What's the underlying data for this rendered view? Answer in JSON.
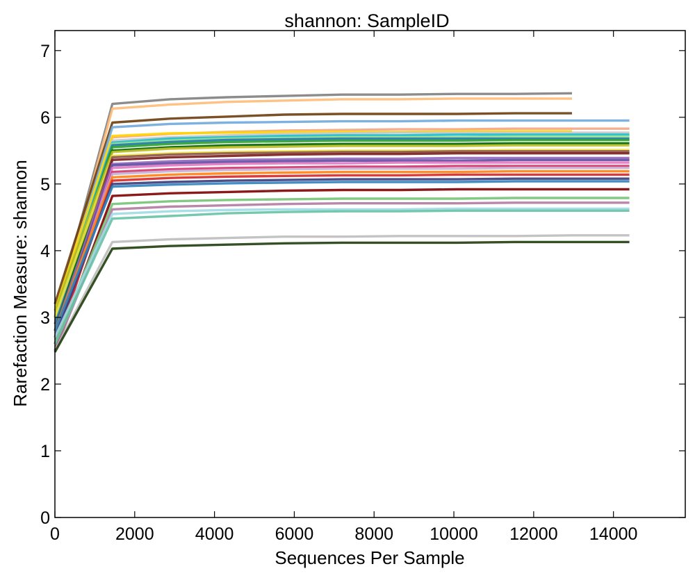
{
  "chart_data": {
    "type": "line",
    "title": "shannon: SampleID",
    "xlabel": "Sequences Per Sample",
    "ylabel": "Rarefaction Measure: shannon",
    "xlim": [
      0,
      15800
    ],
    "ylim": [
      0,
      7.3
    ],
    "x_ticks": [
      0,
      2000,
      4000,
      6000,
      8000,
      10000,
      12000,
      14000
    ],
    "x_tick_labels": [
      "0",
      "2000",
      "4000",
      "6000",
      "8000",
      "10000",
      "12000",
      "14000"
    ],
    "y_ticks": [
      0,
      1,
      2,
      3,
      4,
      5,
      6,
      7
    ],
    "y_tick_labels": [
      "0",
      "1",
      "2",
      "3",
      "4",
      "5",
      "6",
      "7"
    ],
    "grid": false,
    "legend": "none",
    "x": [
      0,
      1440,
      2880,
      4320,
      5760,
      7200,
      8640,
      10080,
      11520,
      12960,
      14400
    ],
    "series": [
      {
        "color": "#7f7f7f",
        "values": [
          3.0,
          6.2,
          6.27,
          6.3,
          6.32,
          6.34,
          6.34,
          6.35,
          6.35,
          6.36,
          null
        ]
      },
      {
        "color": "#ffbb78",
        "values": [
          2.9,
          6.13,
          6.19,
          6.23,
          6.25,
          6.27,
          6.27,
          6.28,
          6.28,
          6.28,
          null
        ]
      },
      {
        "color": "#6b3e10",
        "values": [
          3.2,
          5.92,
          5.98,
          6.01,
          6.04,
          6.05,
          6.05,
          6.05,
          6.06,
          6.06,
          null
        ]
      },
      {
        "color": "#6fa8dc",
        "values": [
          3.0,
          5.85,
          5.9,
          5.92,
          5.93,
          5.94,
          5.94,
          5.95,
          5.95,
          5.95,
          5.95
        ]
      },
      {
        "color": "#f4a582",
        "values": [
          2.8,
          5.7,
          5.75,
          5.78,
          5.8,
          5.81,
          5.82,
          5.82,
          5.83,
          5.83,
          5.83
        ]
      },
      {
        "color": "#ffd700",
        "values": [
          3.1,
          5.72,
          5.76,
          5.77,
          5.78,
          5.78,
          5.78,
          5.79,
          5.79,
          5.79,
          null
        ]
      },
      {
        "color": "#c7c7c7",
        "values": [
          2.7,
          5.65,
          5.7,
          5.73,
          5.75,
          5.76,
          5.77,
          5.77,
          5.77,
          5.77,
          5.77
        ]
      },
      {
        "color": "#17becf",
        "values": [
          3.0,
          5.62,
          5.68,
          5.7,
          5.72,
          5.73,
          5.73,
          5.74,
          5.74,
          5.74,
          5.74
        ]
      },
      {
        "color": "#98df8a",
        "values": [
          2.6,
          5.6,
          5.65,
          5.68,
          5.69,
          5.7,
          5.7,
          5.7,
          5.71,
          5.71,
          5.71
        ]
      },
      {
        "color": "#1f77b4",
        "values": [
          2.9,
          5.58,
          5.63,
          5.66,
          5.67,
          5.68,
          5.68,
          5.68,
          5.68,
          5.68,
          5.68
        ]
      },
      {
        "color": "#2ca02c",
        "values": [
          3.0,
          5.55,
          5.6,
          5.63,
          5.64,
          5.65,
          5.65,
          5.65,
          5.66,
          5.66,
          5.66
        ]
      },
      {
        "color": "#006400",
        "values": [
          2.8,
          5.5,
          5.55,
          5.58,
          5.59,
          5.6,
          5.6,
          5.6,
          5.61,
          5.61,
          5.61
        ]
      },
      {
        "color": "#bcbd22",
        "values": [
          3.1,
          5.48,
          5.53,
          5.55,
          5.56,
          5.57,
          5.57,
          5.57,
          5.58,
          5.58,
          5.58
        ]
      },
      {
        "color": "#f0e442",
        "values": [
          3.0,
          5.42,
          5.46,
          5.48,
          5.49,
          5.5,
          5.5,
          5.5,
          5.51,
          5.51,
          5.51
        ]
      },
      {
        "color": "#8c564b",
        "values": [
          2.7,
          5.4,
          5.44,
          5.46,
          5.47,
          5.48,
          5.48,
          5.49,
          5.49,
          5.49,
          5.49
        ]
      },
      {
        "color": "#7b1c1c",
        "values": [
          2.6,
          5.36,
          5.4,
          5.42,
          5.44,
          5.45,
          5.45,
          5.46,
          5.46,
          5.46,
          5.46
        ]
      },
      {
        "color": "#9467bd",
        "values": [
          2.8,
          5.3,
          5.34,
          5.36,
          5.37,
          5.38,
          5.38,
          5.39,
          5.39,
          5.39,
          5.39
        ]
      },
      {
        "color": "#5e4fa2",
        "values": [
          2.7,
          5.28,
          5.31,
          5.33,
          5.34,
          5.35,
          5.35,
          5.35,
          5.36,
          5.36,
          5.36
        ]
      },
      {
        "color": "#e377c2",
        "values": [
          2.6,
          5.24,
          5.28,
          5.3,
          5.31,
          5.31,
          5.32,
          5.32,
          5.32,
          5.32,
          5.32
        ]
      },
      {
        "color": "#d6336c",
        "values": [
          2.5,
          5.18,
          5.22,
          5.24,
          5.25,
          5.26,
          5.26,
          5.27,
          5.27,
          5.27,
          5.27
        ]
      },
      {
        "color": "#c5b0d5",
        "values": [
          2.7,
          5.15,
          5.19,
          5.21,
          5.22,
          5.23,
          5.23,
          5.23,
          5.24,
          5.24,
          5.24
        ]
      },
      {
        "color": "#ff7f0e",
        "values": [
          2.8,
          5.1,
          5.14,
          5.16,
          5.17,
          5.18,
          5.18,
          5.18,
          5.19,
          5.19,
          5.19
        ]
      },
      {
        "color": "#d62728",
        "values": [
          2.6,
          5.05,
          5.09,
          5.11,
          5.12,
          5.13,
          5.13,
          5.14,
          5.14,
          5.14,
          5.14
        ]
      },
      {
        "color": "#393b79",
        "values": [
          2.7,
          5.0,
          5.03,
          5.05,
          5.06,
          5.07,
          5.07,
          5.07,
          5.08,
          5.08,
          5.08
        ]
      },
      {
        "color": "#3182bd",
        "values": [
          2.8,
          4.96,
          4.99,
          5.01,
          5.02,
          5.03,
          5.03,
          5.03,
          5.04,
          5.04,
          5.04
        ]
      },
      {
        "color": "#7f0000",
        "values": [
          2.5,
          4.82,
          4.86,
          4.88,
          4.9,
          4.91,
          4.91,
          4.92,
          4.92,
          4.92,
          4.92
        ]
      },
      {
        "color": "#74c476",
        "values": [
          2.6,
          4.7,
          4.74,
          4.76,
          4.77,
          4.78,
          4.78,
          4.78,
          4.79,
          4.79,
          4.79
        ]
      },
      {
        "color": "#b07aa1",
        "values": [
          2.5,
          4.62,
          4.66,
          4.68,
          4.7,
          4.71,
          4.71,
          4.71,
          4.72,
          4.72,
          4.72
        ]
      },
      {
        "color": "#9edae5",
        "values": [
          2.7,
          4.55,
          4.59,
          4.61,
          4.62,
          4.62,
          4.62,
          4.63,
          4.63,
          4.63,
          4.63
        ]
      },
      {
        "color": "#66c2a5",
        "values": [
          2.6,
          4.48,
          4.52,
          4.56,
          4.58,
          4.59,
          4.59,
          4.6,
          4.6,
          4.6,
          4.6
        ]
      },
      {
        "color": "#bdbdbd",
        "values": [
          2.5,
          4.13,
          4.17,
          4.19,
          4.21,
          4.21,
          4.22,
          4.22,
          4.22,
          4.23,
          4.23
        ]
      },
      {
        "color": "#1f3d0c",
        "values": [
          2.48,
          4.03,
          4.07,
          4.09,
          4.11,
          4.12,
          4.12,
          4.12,
          4.13,
          4.13,
          4.13
        ]
      }
    ]
  }
}
